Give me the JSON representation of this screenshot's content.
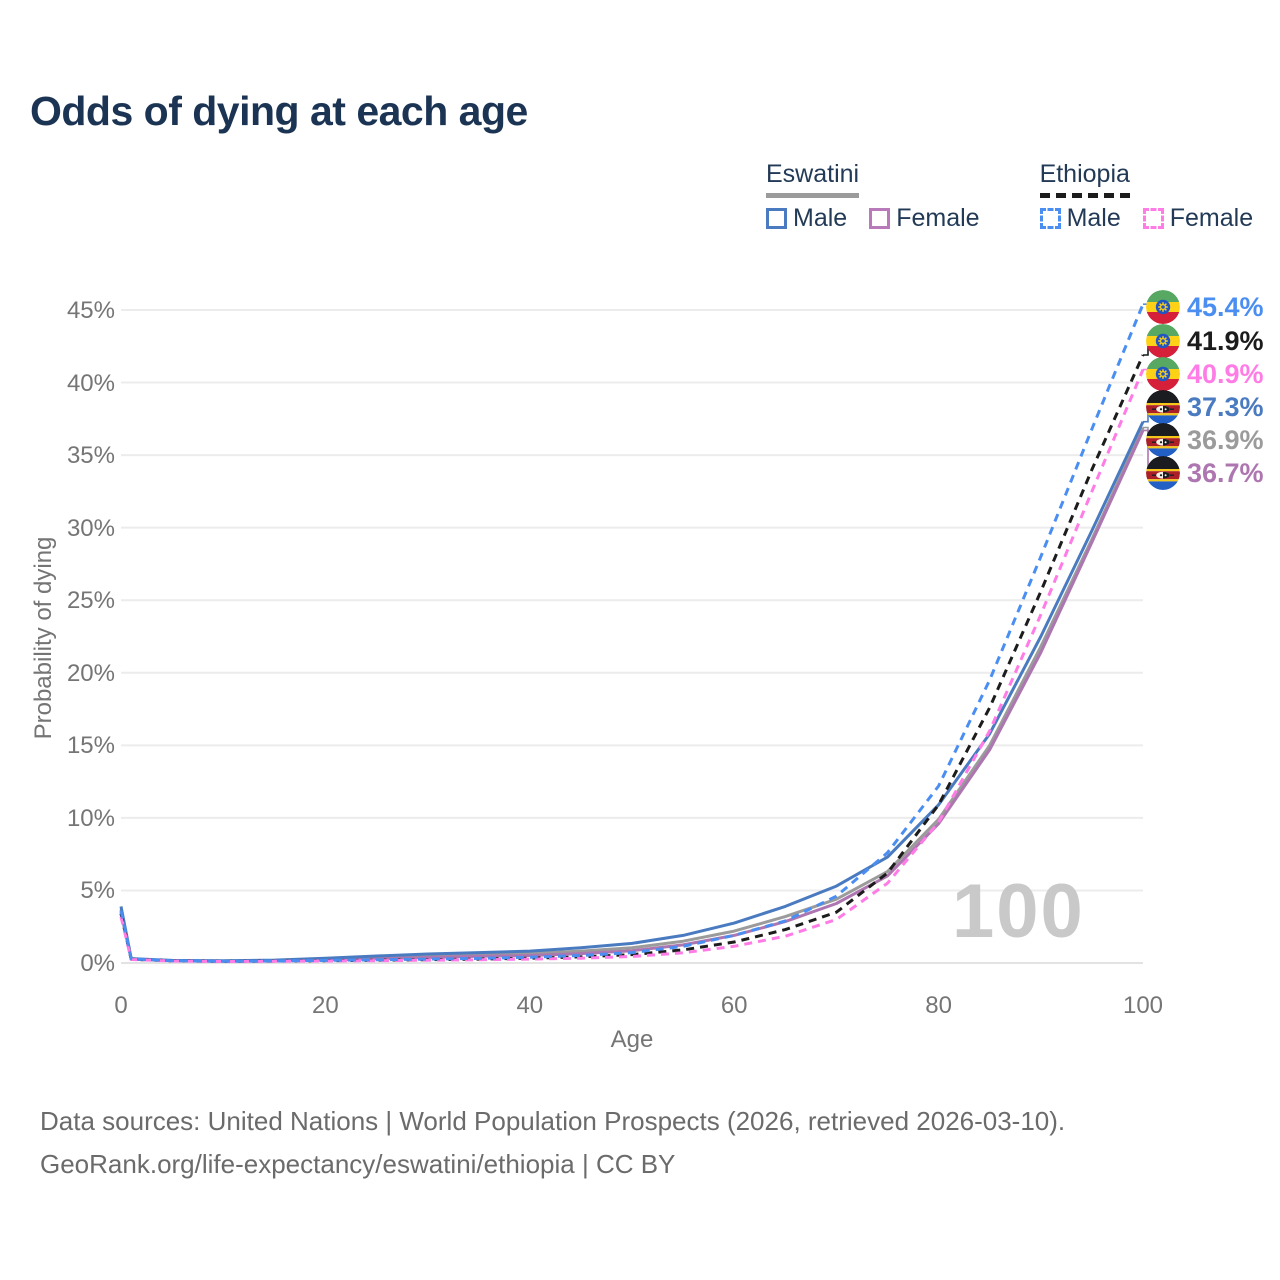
{
  "header": {
    "title": "Odds of dying at each age"
  },
  "legend": {
    "groups": [
      {
        "name": "Eswatini",
        "line_style": "solid",
        "line_color": "#9b9b9b",
        "items": [
          {
            "label": "Male",
            "color": "#4a7bc0"
          },
          {
            "label": "Female",
            "color": "#b87ab8"
          }
        ]
      },
      {
        "name": "Ethiopia",
        "line_style": "dashed",
        "line_color": "#1c1c1c",
        "items": [
          {
            "label": "Male",
            "color": "#4b8ef1"
          },
          {
            "label": "Female",
            "color": "#ff7ce6"
          }
        ]
      }
    ]
  },
  "chart_data": {
    "type": "line",
    "title": "Odds of dying at each age",
    "xlabel": "Age",
    "ylabel": "Probability of dying",
    "xlim": [
      0,
      100
    ],
    "ylim": [
      0,
      45
    ],
    "x_ticks": [
      "0",
      "20",
      "40",
      "60",
      "80",
      "100"
    ],
    "y_ticks": [
      "0%",
      "5%",
      "10%",
      "15%",
      "20%",
      "25%",
      "30%",
      "35%",
      "40%",
      "45%"
    ],
    "grid": "horizontal",
    "legend_position": "top-right",
    "ages": [
      0,
      1,
      5,
      10,
      15,
      20,
      25,
      30,
      35,
      40,
      45,
      50,
      55,
      60,
      65,
      70,
      75,
      80,
      85,
      90,
      95,
      100
    ],
    "series": [
      {
        "name": "Ethiopia Male",
        "country": "ethiopia",
        "sex": "male",
        "style": "dashed",
        "color": "#4b8ef1",
        "label_color": "#4b8ef1",
        "values": [
          3.6,
          0.28,
          0.16,
          0.12,
          0.14,
          0.18,
          0.22,
          0.27,
          0.32,
          0.4,
          0.52,
          0.72,
          1.15,
          1.9,
          2.9,
          4.6,
          7.6,
          12.2,
          19.5,
          28.0,
          36.8,
          45.4
        ],
        "end": {
          "text": "45.4%",
          "flag": "ethiopia"
        }
      },
      {
        "name": "Ethiopia Both sexes",
        "country": "ethiopia",
        "sex": "both",
        "style": "dashed",
        "color": "#1c1c1c",
        "label_color": "#1c1c1c",
        "values": [
          3.4,
          0.26,
          0.15,
          0.11,
          0.13,
          0.16,
          0.19,
          0.23,
          0.27,
          0.33,
          0.42,
          0.58,
          0.9,
          1.45,
          2.3,
          3.5,
          6.2,
          10.9,
          17.6,
          25.6,
          34.0,
          41.9
        ],
        "end": {
          "text": "41.9%",
          "flag": "ethiopia"
        }
      },
      {
        "name": "Ethiopia Female",
        "country": "ethiopia",
        "sex": "female",
        "style": "dashed",
        "color": "#ff7ce6",
        "label_color": "#ff7ce6",
        "values": [
          3.2,
          0.24,
          0.14,
          0.1,
          0.12,
          0.14,
          0.16,
          0.19,
          0.22,
          0.27,
          0.33,
          0.45,
          0.7,
          1.15,
          1.85,
          3.0,
          5.5,
          9.7,
          16.0,
          24.0,
          32.5,
          40.9
        ],
        "end": {
          "text": "40.9%",
          "flag": "ethiopia"
        }
      },
      {
        "name": "Eswatini Male",
        "country": "eswatini",
        "sex": "male",
        "style": "solid",
        "color": "#4a7bc0",
        "label_color": "#4a7bc0",
        "values": [
          3.9,
          0.3,
          0.18,
          0.15,
          0.2,
          0.33,
          0.48,
          0.62,
          0.72,
          0.82,
          1.05,
          1.35,
          1.9,
          2.75,
          3.9,
          5.3,
          7.3,
          10.9,
          15.8,
          22.5,
          29.8,
          37.3
        ],
        "end": {
          "text": "37.3%",
          "flag": "eswatini"
        }
      },
      {
        "name": "Eswatini Both sexes",
        "country": "eswatini",
        "sex": "both",
        "style": "solid",
        "color": "#9b9b9b",
        "label_color": "#9b9b9b",
        "values": [
          3.7,
          0.28,
          0.16,
          0.13,
          0.17,
          0.27,
          0.38,
          0.5,
          0.58,
          0.66,
          0.82,
          1.05,
          1.5,
          2.2,
          3.2,
          4.4,
          6.3,
          9.9,
          15.0,
          21.8,
          29.2,
          36.9
        ],
        "end": {
          "text": "36.9%",
          "flag": "eswatini"
        }
      },
      {
        "name": "Eswatini Female",
        "country": "eswatini",
        "sex": "female",
        "style": "solid",
        "color": "#ad76b0",
        "label_color": "#ad76b0",
        "values": [
          3.5,
          0.26,
          0.15,
          0.12,
          0.14,
          0.2,
          0.28,
          0.38,
          0.46,
          0.52,
          0.65,
          0.85,
          1.25,
          1.9,
          2.85,
          4.1,
          6.0,
          9.6,
          14.7,
          21.4,
          29.0,
          36.7
        ],
        "end": {
          "text": "36.7%",
          "flag": "eswatini"
        }
      }
    ],
    "hover_age_indicator": "100"
  },
  "watermark": {
    "text": "100"
  },
  "footer": {
    "line1": "Data sources: United Nations | World Population Prospects (2026, retrieved 2026-03-10).",
    "line2": "GeoRank.org/life-expectancy/eswatini/ethiopia | CC BY"
  }
}
